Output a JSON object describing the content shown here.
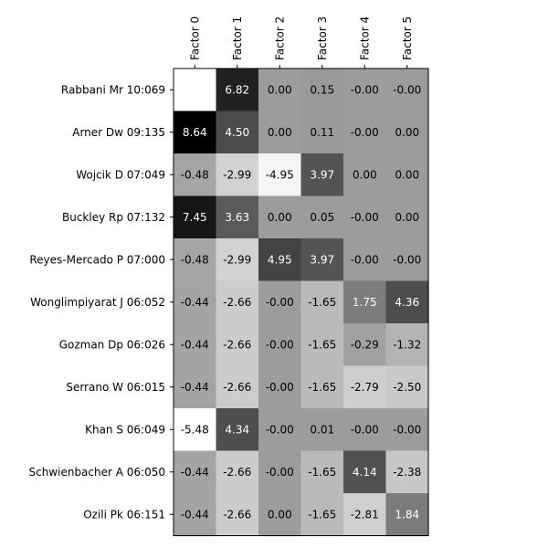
{
  "chart_data": {
    "type": "heatmap",
    "colormap": "gray_r",
    "vmin": -5.48,
    "vmax": 8.64,
    "columns": [
      "Factor 0",
      "Factor 1",
      "Factor 2",
      "Factor 3",
      "Factor 4",
      "Factor 5"
    ],
    "rows": [
      "Rabbani Mr 10:069",
      "Arner Dw 09:135",
      "Wojcik D 07:049",
      "Buckley Rp 07:132",
      "Reyes-Mercado P 07:000",
      "Wonglimpiyarat J 06:052",
      "Gozman Dp 06:026",
      "Serrano W 06:015",
      "Khan S 06:049",
      "Schwienbacher A 06:050",
      "Ozili Pk 06:151"
    ],
    "cell_labels": [
      [
        "",
        "6.82",
        "0.00",
        "0.15",
        "-0.00",
        "-0.00"
      ],
      [
        "8.64",
        "4.50",
        "0.00",
        "0.11",
        "-0.00",
        "0.00"
      ],
      [
        "-0.48",
        "-2.99",
        "-4.95",
        "3.97",
        "0.00",
        "0.00"
      ],
      [
        "7.45",
        "3.63",
        "0.00",
        "0.05",
        "-0.00",
        "0.00"
      ],
      [
        "-0.48",
        "-2.99",
        "4.95",
        "3.97",
        "-0.00",
        "-0.00"
      ],
      [
        "-0.44",
        "-2.66",
        "-0.00",
        "-1.65",
        "1.75",
        "4.36"
      ],
      [
        "-0.44",
        "-2.66",
        "-0.00",
        "-1.65",
        "-0.29",
        "-1.32"
      ],
      [
        "-0.44",
        "-2.66",
        "-0.00",
        "-1.65",
        "-2.79",
        "-2.50"
      ],
      [
        "-5.48",
        "4.34",
        "-0.00",
        "0.01",
        "-0.00",
        "-0.00"
      ],
      [
        "-0.44",
        "-2.66",
        "-0.00",
        "-1.65",
        "4.14",
        "-2.38"
      ],
      [
        "-0.44",
        "-2.66",
        "0.00",
        "-1.65",
        "-2.81",
        "1.84"
      ]
    ],
    "values": [
      [
        -5.48,
        6.82,
        0.0,
        0.15,
        -0.0,
        -0.0
      ],
      [
        8.64,
        4.5,
        0.0,
        0.11,
        -0.0,
        0.0
      ],
      [
        -0.48,
        -2.99,
        -4.95,
        3.97,
        0.0,
        0.0
      ],
      [
        7.45,
        3.63,
        0.0,
        0.05,
        -0.0,
        0.0
      ],
      [
        -0.48,
        -2.99,
        4.95,
        3.97,
        -0.0,
        -0.0
      ],
      [
        -0.44,
        -2.66,
        -0.0,
        -1.65,
        1.75,
        4.36
      ],
      [
        -0.44,
        -2.66,
        -0.0,
        -1.65,
        -0.29,
        -1.32
      ],
      [
        -0.44,
        -2.66,
        -0.0,
        -1.65,
        -2.79,
        -2.5
      ],
      [
        -5.48,
        4.34,
        -0.0,
        0.01,
        -0.0,
        -0.0
      ],
      [
        -0.44,
        -2.66,
        -0.0,
        -1.65,
        4.14,
        -2.38
      ],
      [
        -0.44,
        -2.66,
        0.0,
        -1.65,
        -2.81,
        1.84
      ]
    ]
  }
}
